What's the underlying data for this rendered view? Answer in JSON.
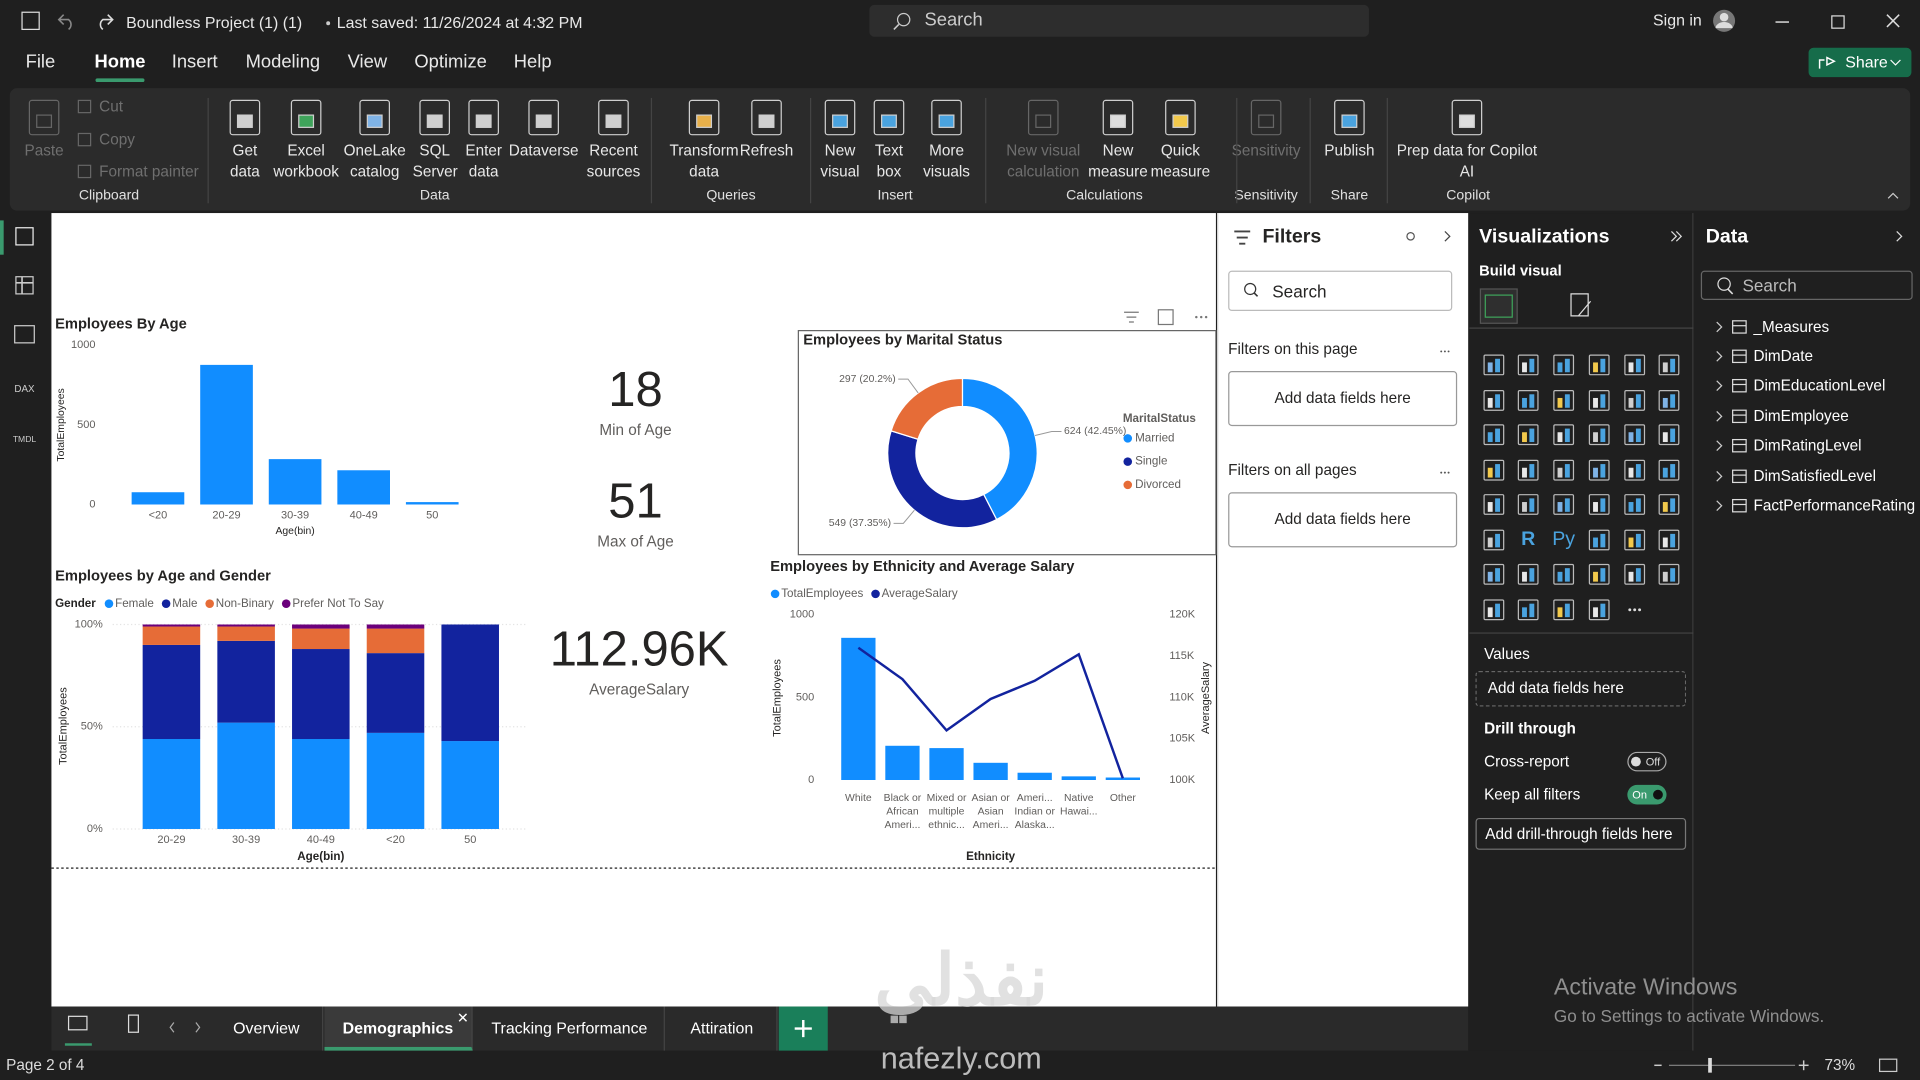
{
  "title_bar": {
    "file": "Boundless Project (1) (1)",
    "saved": "Last saved: 11/26/2024 at 4:32 PM",
    "search": "Search",
    "sign_in": "Sign in"
  },
  "menu": {
    "tabs": [
      "File",
      "Home",
      "Insert",
      "Modeling",
      "View",
      "Optimize",
      "Help"
    ],
    "active": "Home",
    "share": "Share"
  },
  "ribbon": {
    "groups": [
      {
        "name": "Clipboard",
        "buttons": [
          "Paste"
        ],
        "small": [
          "Cut",
          "Copy",
          "Format painter"
        ]
      },
      {
        "name": "Data",
        "buttons": [
          "Get data",
          "Excel workbook",
          "OneLake catalog",
          "SQL Server",
          "Enter data",
          "Dataverse",
          "Recent sources"
        ]
      },
      {
        "name": "Queries",
        "buttons": [
          "Transform data",
          "Refresh"
        ]
      },
      {
        "name": "Insert",
        "buttons": [
          "New visual",
          "Text box",
          "More visuals"
        ]
      },
      {
        "name": "Calculations",
        "buttons": [
          "New visual calculation",
          "New measure",
          "Quick measure"
        ]
      },
      {
        "name": "Sensitivity",
        "buttons": [
          "Sensitivity"
        ]
      },
      {
        "name": "Share",
        "buttons": [
          "Publish"
        ]
      },
      {
        "name": "Copilot",
        "buttons": [
          "Prep data for Copilot AI"
        ]
      }
    ]
  },
  "nav_icons": {
    "dax": "DAX",
    "tmdl": "TMDL"
  },
  "filters": {
    "title": "Filters",
    "search": "Search",
    "page_label": "Filters on this page",
    "page_drop": "Add data fields here",
    "all_label": "Filters on all pages",
    "all_drop": "Add data fields here"
  },
  "visualizations": {
    "title": "Visualizations",
    "build": "Build visual",
    "r_visual": "R",
    "python_visual": "Py",
    "values": "Values",
    "values_drop": "Add data fields here",
    "drill": "Drill through",
    "cross_report": "Cross-report",
    "cross_state": "Off",
    "keep_filters": "Keep all filters",
    "keep_state": "On",
    "drill_drop": "Add drill-through fields here"
  },
  "data_pane": {
    "title": "Data",
    "search": "Search",
    "tables": [
      "_Measures",
      "DimDate",
      "DimEducationLevel",
      "DimEmployee",
      "DimRatingLevel",
      "DimSatisfiedLevel",
      "FactPerformanceRating"
    ]
  },
  "report": {
    "cards": [
      {
        "value": "18",
        "label": "Min of Age"
      },
      {
        "value": "51",
        "label": "Max of Age"
      },
      {
        "value": "112.96K",
        "label": "AverageSalary"
      }
    ],
    "charts": [
      {
        "type": "bar",
        "title": "Employees By Age",
        "categories": [
          "<20",
          "20-29",
          "30-39",
          "40-49",
          "50"
        ],
        "values": [
          77,
          877,
          285,
          215,
          15
        ],
        "color": "#118DFF",
        "ylim": [
          0,
          1000
        ],
        "yticks": [
          0,
          500,
          1000
        ],
        "xlabel": "Age(bin)",
        "ylabel": "TotalEmployees"
      },
      {
        "type": "donut",
        "title": "Employees by Marital Status",
        "legend_title": "MaritalStatus",
        "categories": [
          "Married",
          "Single",
          "Divorced"
        ],
        "values": [
          624,
          549,
          297
        ],
        "value_labels": [
          "624 (42.45%)",
          "549 (37.35%)",
          "297 (20.2%)"
        ],
        "colors": [
          "#118DFF",
          "#12239E",
          "#E66C37"
        ]
      },
      {
        "type": "stacked_bar_100",
        "title": "Employees by Age and Gender",
        "legend_title": "Gender",
        "categories": [
          "20-29",
          "30-39",
          "40-49",
          "<20",
          "50"
        ],
        "series": [
          {
            "name": "Female",
            "color": "#118DFF",
            "values": [
              44,
              52,
              44,
              47,
              43
            ]
          },
          {
            "name": "Male",
            "color": "#12239E",
            "values": [
              46,
              40,
              44,
              39,
              57
            ]
          },
          {
            "name": "Non-Binary",
            "color": "#E66C37",
            "values": [
              9,
              7,
              10,
              12,
              0
            ]
          },
          {
            "name": "Prefer Not To Say",
            "color": "#6B007B",
            "values": [
              1,
              1,
              2,
              2,
              0
            ]
          }
        ],
        "ylim": [
          0,
          100
        ],
        "yticks": [
          {
            "value": 0,
            "label": "0%"
          },
          {
            "value": 50,
            "label": "50%"
          },
          {
            "value": 100,
            "label": "100%"
          }
        ],
        "grid": true,
        "xlabel": "Age(bin)",
        "ylabel": "TotalEmployees"
      },
      {
        "type": "bar_line",
        "title": "Employees by Ethnicity and Average Salary",
        "categories": [
          "White",
          "Black or African Ameri...",
          "Mixed or multiple ethnic...",
          "Asian or Asian Ameri...",
          "Ameri... Indian or Alaska...",
          "Native Hawai...",
          "Other"
        ],
        "series": [
          {
            "name": "TotalEmployees",
            "color": "#118DFF",
            "values": [
              860,
              207,
              193,
              104,
              44,
              22,
              15
            ]
          },
          {
            "name": "AverageSalary",
            "color": "#12239E",
            "axis": "y2",
            "values": [
              116000,
              112200,
              106000,
              109800,
              112000,
              115200,
              100200
            ]
          }
        ],
        "ylim": [
          0,
          1000
        ],
        "yticks": [
          0,
          500,
          1000
        ],
        "y2lim": [
          100000,
          120000
        ],
        "y2ticks": [
          {
            "value": 100000,
            "label": "100K"
          },
          {
            "value": 105000,
            "label": "105K"
          },
          {
            "value": 110000,
            "label": "110K"
          },
          {
            "value": 115000,
            "label": "115K"
          },
          {
            "value": 120000,
            "label": "120K"
          }
        ],
        "xlabel": "Ethnicity",
        "ylabel": "TotalEmployees",
        "y2label": "AverageSalary"
      }
    ]
  },
  "pages": {
    "tabs": [
      "Overview",
      "Demographics",
      "Tracking Performance",
      "Attiration"
    ],
    "active": "Demographics"
  },
  "status": {
    "page": "Page 2 of 4",
    "zoom": "73%"
  },
  "watermark": {
    "activate": "Activate Windows",
    "goto": "Go to Settings to activate Windows.",
    "logo": "نفذلي",
    "brand": "nafezly.com"
  }
}
